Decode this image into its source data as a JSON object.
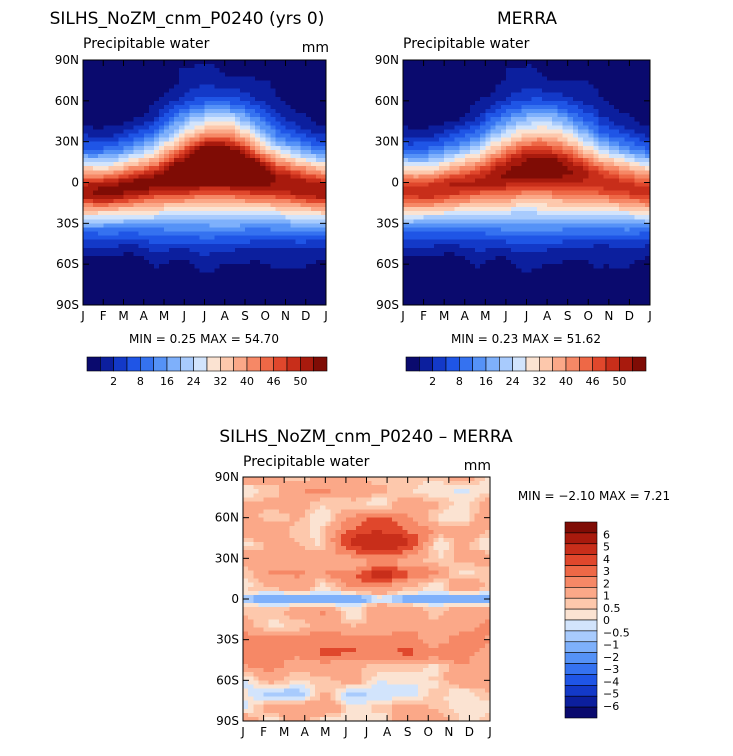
{
  "palettes": {
    "main": [
      "#0a0a6e",
      "#0c1f9e",
      "#1339c8",
      "#1f55e6",
      "#3572f0",
      "#5592f7",
      "#7eb0fb",
      "#a8cbfd",
      "#d2e4fc",
      "#fbe3d2",
      "#fdc8ac",
      "#fba888",
      "#f68866",
      "#ee6846",
      "#e0472c",
      "#c82e1a",
      "#a81a0d",
      "#7f0c05"
    ],
    "diff": [
      "#0a0a6e",
      "#0c1f9e",
      "#1339c8",
      "#1f55e6",
      "#3572f0",
      "#5592f7",
      "#7eb0fb",
      "#a8cbfd",
      "#d2e4fc",
      "#fbe3d2",
      "#fdc8ac",
      "#fba888",
      "#f68866",
      "#ee6846",
      "#e0472c",
      "#c82e1a",
      "#a81a0d",
      "#7f0c05"
    ]
  },
  "chart_data": [
    {
      "type": "heatmap",
      "title": "SILHS_NoZM_cnm_P0240 (yrs 0)",
      "subtitle_left": "Precipitable water",
      "units": "mm",
      "x_ticks": [
        "J",
        "F",
        "M",
        "A",
        "M",
        "J",
        "J",
        "A",
        "S",
        "O",
        "N",
        "D",
        "J"
      ],
      "y_ticks": [
        "90N",
        "60N",
        "30N",
        "0",
        "30S",
        "60S",
        "90S"
      ],
      "ylim": [
        -90,
        90
      ],
      "stats": "MIN =    0.25  MAX =   54.70",
      "colorbar_labels": [
        "2",
        "8",
        "16",
        "24",
        "32",
        "40",
        "46",
        "50"
      ],
      "field": {
        "kind": "clim",
        "equator_max": 54.7,
        "pole_min": 0.25,
        "north_plume": 1.0
      }
    },
    {
      "type": "heatmap",
      "title": "MERRA",
      "subtitle_left": "Precipitable water",
      "units": "",
      "x_ticks": [
        "J",
        "F",
        "M",
        "A",
        "M",
        "J",
        "J",
        "A",
        "S",
        "O",
        "N",
        "D",
        "J"
      ],
      "y_ticks": [
        "90N",
        "60N",
        "30N",
        "0",
        "30S",
        "60S",
        "90S"
      ],
      "ylim": [
        -90,
        90
      ],
      "stats": "MIN =    0.23  MAX =   51.62",
      "colorbar_labels": [
        "2",
        "8",
        "16",
        "24",
        "32",
        "40",
        "46",
        "50"
      ],
      "field": {
        "kind": "clim",
        "equator_max": 51.62,
        "pole_min": 0.23,
        "north_plume": 0.7
      }
    },
    {
      "type": "heatmap",
      "title": "SILHS_NoZM_cnm_P0240 – MERRA",
      "subtitle_left": "Precipitable water",
      "units": "mm",
      "x_ticks": [
        "J",
        "F",
        "M",
        "A",
        "M",
        "J",
        "J",
        "A",
        "S",
        "O",
        "N",
        "D",
        "J"
      ],
      "y_ticks": [
        "90N",
        "60N",
        "30N",
        "0",
        "30S",
        "60S",
        "90S"
      ],
      "ylim": [
        -90,
        90
      ],
      "stats": "MIN =  −2.10  MAX =    7.21",
      "colorbar_labels": [
        "6",
        "5",
        "4",
        "3",
        "2",
        "1",
        "0.5",
        "0",
        "−0.5",
        "−1",
        "−2",
        "−3",
        "−4",
        "−5",
        "−6"
      ],
      "field": {
        "kind": "diff",
        "min": -2.1,
        "max": 7.21
      }
    }
  ]
}
